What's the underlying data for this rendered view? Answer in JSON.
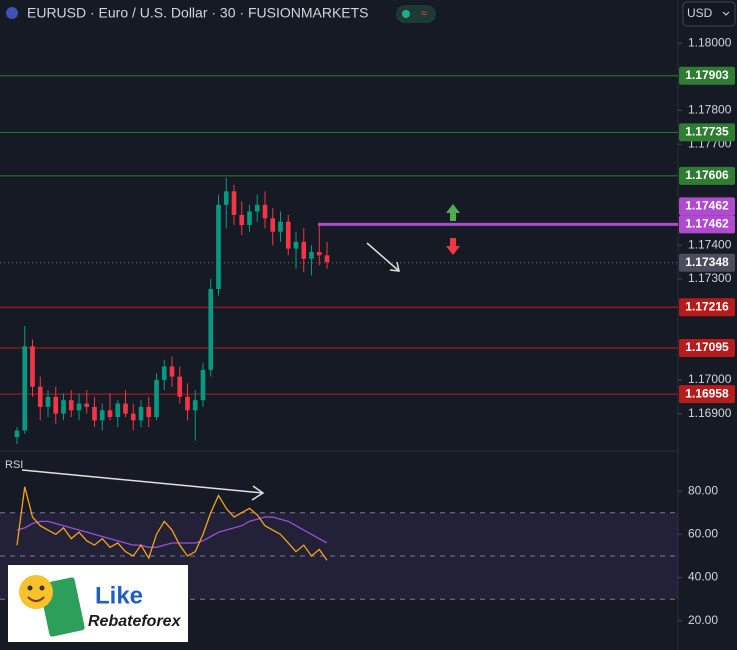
{
  "chart_data": {
    "type": "candlestick",
    "title": "EURUSD · Euro / U.S. Dollar · 30 · FUSIONMARKETS",
    "currency": "USD",
    "ylim": [
      1.16798,
      1.18128
    ],
    "yticks": [
      {
        "value": 1.169,
        "label": "1.16900"
      },
      {
        "value": 1.17,
        "label": "1.17000"
      },
      {
        "value": 1.173,
        "label": "1.17300"
      },
      {
        "value": 1.174,
        "label": "1.17400"
      },
      {
        "value": 1.177,
        "label": "1.17700"
      },
      {
        "value": 1.178,
        "label": "1.17800"
      },
      {
        "value": 1.18,
        "label": "1.18000"
      }
    ],
    "up_color": "#089981",
    "down_color": "#f23645",
    "candles": {
      "open": [
        1.1683,
        1.1685,
        1.171,
        1.1698,
        1.1692,
        1.1695,
        1.169,
        1.1694,
        1.1691,
        1.1693,
        1.1692,
        1.1688,
        1.1691,
        1.1689,
        1.1693,
        1.169,
        1.1688,
        1.1692,
        1.1689,
        1.17,
        1.1704,
        1.1701,
        1.1695,
        1.1691,
        1.1694,
        1.1703,
        1.1727,
        1.1752,
        1.1756,
        1.1749,
        1.1746,
        1.175,
        1.1752,
        1.1748,
        1.1744,
        1.1747,
        1.1739,
        1.1741,
        1.1736,
        1.1738,
        1.1737
      ],
      "high": [
        1.1686,
        1.1716,
        1.1712,
        1.1701,
        1.1697,
        1.1698,
        1.1696,
        1.1697,
        1.1696,
        1.1697,
        1.1695,
        1.1693,
        1.1696,
        1.1694,
        1.1697,
        1.1693,
        1.1694,
        1.1695,
        1.1702,
        1.1706,
        1.1707,
        1.1704,
        1.1699,
        1.1697,
        1.1705,
        1.173,
        1.1755,
        1.176,
        1.1758,
        1.1753,
        1.1752,
        1.1755,
        1.1756,
        1.1751,
        1.175,
        1.1749,
        1.1744,
        1.1745,
        1.174,
        1.1746,
        1.1741
      ],
      "low": [
        1.1681,
        1.1684,
        1.1695,
        1.1688,
        1.1689,
        1.1687,
        1.1688,
        1.1689,
        1.1688,
        1.169,
        1.1686,
        1.1685,
        1.1688,
        1.1686,
        1.1689,
        1.1685,
        1.1686,
        1.1686,
        1.1688,
        1.1697,
        1.1698,
        1.1693,
        1.1688,
        1.1682,
        1.1692,
        1.1701,
        1.1725,
        1.1745,
        1.1746,
        1.1743,
        1.1744,
        1.1747,
        1.1745,
        1.174,
        1.1741,
        1.1737,
        1.1733,
        1.1732,
        1.1731,
        1.1734,
        1.1733
      ],
      "close": [
        1.1685,
        1.171,
        1.1698,
        1.1692,
        1.1695,
        1.169,
        1.1694,
        1.1691,
        1.1693,
        1.1692,
        1.1688,
        1.1691,
        1.1689,
        1.1693,
        1.169,
        1.1688,
        1.1692,
        1.1689,
        1.17,
        1.1704,
        1.1701,
        1.1695,
        1.1691,
        1.1694,
        1.1703,
        1.1727,
        1.1752,
        1.1756,
        1.1749,
        1.1746,
        1.175,
        1.1752,
        1.1748,
        1.1744,
        1.1747,
        1.1739,
        1.1741,
        1.1736,
        1.1738,
        1.1737,
        1.1735
      ]
    },
    "levels": [
      {
        "value": 1.17903,
        "color": "#2e7d32"
      },
      {
        "value": 1.17735,
        "color": "#2e7d32"
      },
      {
        "value": 1.17606,
        "color": "#2e7d32"
      },
      {
        "value": 1.17216,
        "color": "#b71c1c"
      },
      {
        "value": 1.17095,
        "color": "#b71c1c"
      },
      {
        "value": 1.16958,
        "color": "#b71c1c"
      }
    ],
    "alert_level": {
      "value": 1.17462,
      "color": "#b04ad0"
    },
    "last_price": {
      "value": 1.17348,
      "color": "#4a4e5a"
    },
    "rsi": {
      "label": "RSI",
      "ylim": [
        6.5,
        96.7
      ],
      "yticks": [
        {
          "value": 20,
          "label": "20.00"
        },
        {
          "value": 40,
          "label": "40.00"
        },
        {
          "value": 60,
          "label": "60.00"
        },
        {
          "value": 80,
          "label": "80.00"
        }
      ],
      "bands": [
        70,
        50,
        30
      ],
      "color": "#f7a21b",
      "ma_color": "#9c4fd6",
      "values": [
        55,
        82,
        68,
        64,
        62,
        60,
        63,
        58,
        61,
        57,
        55,
        58,
        54,
        56,
        52,
        50,
        55,
        49,
        60,
        66,
        62,
        55,
        50,
        52,
        60,
        70,
        78,
        72,
        68,
        70,
        72,
        69,
        64,
        62,
        60,
        56,
        52,
        55,
        50,
        53,
        48
      ],
      "ma": [
        62,
        63,
        65,
        66,
        66,
        65,
        64,
        63,
        62,
        61,
        60,
        59,
        58,
        57,
        56,
        55,
        55,
        54,
        54,
        55,
        56,
        56,
        56,
        56,
        57,
        59,
        61,
        62,
        63,
        64,
        66,
        67,
        68,
        68,
        67,
        66,
        64,
        62,
        60,
        58,
        56
      ]
    },
    "logo": {
      "line1": "Like",
      "line2": "Rebateforex"
    }
  }
}
